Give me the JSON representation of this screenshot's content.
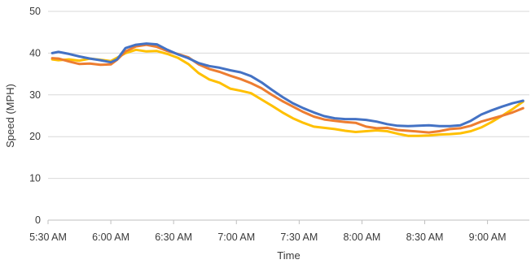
{
  "chart_data": {
    "type": "line",
    "title": "",
    "xlabel": "Time",
    "ylabel": "Speed (MPH)",
    "ylim": [
      0,
      50
    ],
    "yticks": [
      0,
      10,
      20,
      30,
      40,
      50
    ],
    "xlim_minutes": [
      330,
      560
    ],
    "xticks": [
      {
        "label": "5:30 AM",
        "minutes": 330
      },
      {
        "label": "6:00 AM",
        "minutes": 360
      },
      {
        "label": "6:30 AM",
        "minutes": 390
      },
      {
        "label": "7:00 AM",
        "minutes": 420
      },
      {
        "label": "7:30 AM",
        "minutes": 450
      },
      {
        "label": "8:00 AM",
        "minutes": 480
      },
      {
        "label": "8:30 AM",
        "minutes": 510
      },
      {
        "label": "9:00 AM",
        "minutes": 540
      }
    ],
    "grid": true,
    "legend": "none",
    "x_minutes": [
      332,
      335,
      340,
      345,
      350,
      355,
      360,
      363,
      367,
      372,
      377,
      382,
      387,
      392,
      397,
      402,
      407,
      412,
      417,
      422,
      427,
      432,
      437,
      442,
      447,
      452,
      457,
      462,
      467,
      472,
      477,
      482,
      487,
      492,
      497,
      502,
      507,
      512,
      517,
      522,
      527,
      532,
      537,
      542,
      547,
      552,
      557
    ],
    "series": [
      {
        "color": "#4472C4",
        "values": [
          40.0,
          40.3,
          39.8,
          39.2,
          38.7,
          38.3,
          37.8,
          38.5,
          41.2,
          42.0,
          42.3,
          42.1,
          40.8,
          39.7,
          38.8,
          37.6,
          36.9,
          36.5,
          35.9,
          35.4,
          34.5,
          33.0,
          31.2,
          29.5,
          28.0,
          26.8,
          25.8,
          24.9,
          24.4,
          24.2,
          24.2,
          24.0,
          23.6,
          23.0,
          22.6,
          22.5,
          22.6,
          22.7,
          22.5,
          22.5,
          22.7,
          23.8,
          25.3,
          26.3,
          27.2,
          28.0,
          28.6
        ]
      },
      {
        "color": "#ED7D31",
        "values": [
          38.8,
          38.7,
          38.0,
          37.4,
          37.5,
          37.2,
          37.3,
          38.4,
          40.4,
          41.6,
          42.0,
          41.5,
          40.5,
          39.8,
          39.0,
          37.3,
          36.2,
          35.5,
          34.6,
          33.8,
          32.8,
          31.6,
          30.0,
          28.5,
          27.2,
          25.9,
          24.8,
          24.1,
          23.8,
          23.5,
          23.3,
          22.4,
          22.0,
          22.1,
          21.6,
          21.4,
          21.2,
          21.0,
          21.3,
          21.8,
          22.0,
          22.6,
          23.6,
          24.3,
          25.0,
          25.8,
          26.8
        ]
      },
      {
        "color": "#FFC000",
        "values": [
          38.5,
          38.3,
          38.5,
          38.2,
          38.7,
          38.4,
          38.1,
          38.9,
          40.0,
          40.8,
          40.4,
          40.5,
          39.8,
          38.9,
          37.4,
          35.2,
          33.7,
          32.9,
          31.5,
          31.0,
          30.4,
          28.9,
          27.4,
          25.8,
          24.4,
          23.3,
          22.4,
          22.1,
          21.8,
          21.4,
          21.1,
          21.3,
          21.5,
          21.3,
          20.7,
          20.2,
          20.2,
          20.3,
          20.5,
          20.6,
          20.8,
          21.3,
          22.2,
          23.5,
          25.0,
          26.6,
          28.4
        ]
      }
    ]
  }
}
